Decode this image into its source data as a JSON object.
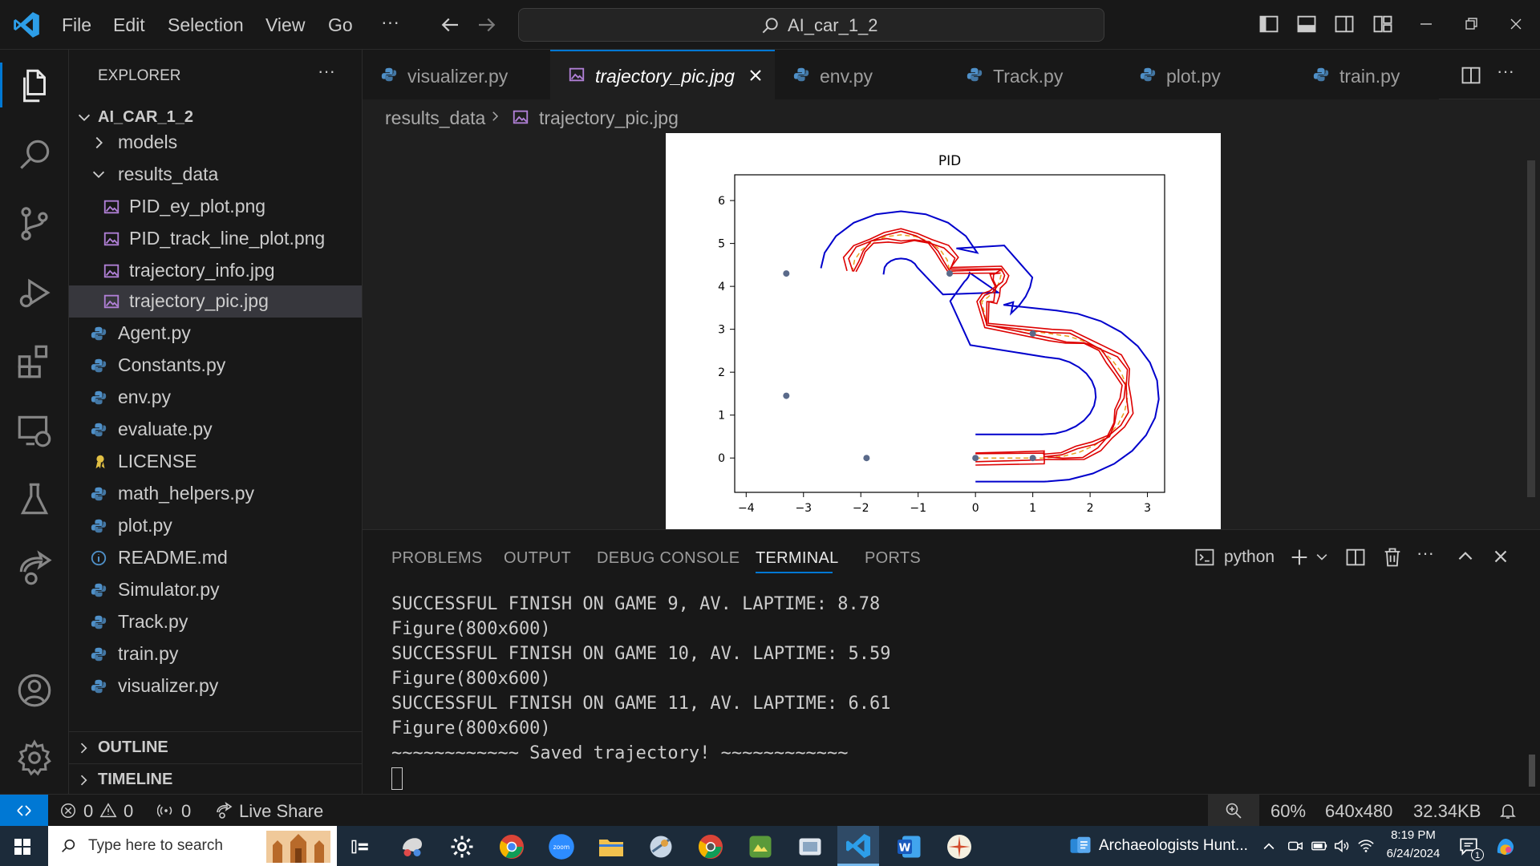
{
  "titlebar": {
    "menu": [
      "File",
      "Edit",
      "Selection",
      "View",
      "Go"
    ],
    "more": "···",
    "search": "AI_car_1_2"
  },
  "sidebar": {
    "title": "EXPLORER",
    "more": "···",
    "root": "AI_CAR_1_2",
    "items": [
      {
        "label": "models",
        "type": "folder"
      },
      {
        "label": "results_data",
        "type": "folder-open"
      },
      {
        "label": "PID_ey_plot.png",
        "type": "image"
      },
      {
        "label": "PID_track_line_plot.png",
        "type": "image"
      },
      {
        "label": "trajectory_info.jpg",
        "type": "image"
      },
      {
        "label": "trajectory_pic.jpg",
        "type": "image"
      },
      {
        "label": "Agent.py",
        "type": "python"
      },
      {
        "label": "Constants.py",
        "type": "python"
      },
      {
        "label": "env.py",
        "type": "python"
      },
      {
        "label": "evaluate.py",
        "type": "python"
      },
      {
        "label": "LICENSE",
        "type": "license"
      },
      {
        "label": "math_helpers.py",
        "type": "python"
      },
      {
        "label": "plot.py",
        "type": "python"
      },
      {
        "label": "README.md",
        "type": "info"
      },
      {
        "label": "Simulator.py",
        "type": "python"
      },
      {
        "label": "Track.py",
        "type": "python"
      },
      {
        "label": "train.py",
        "type": "python"
      },
      {
        "label": "visualizer.py",
        "type": "python"
      }
    ],
    "outline": "OUTLINE",
    "timeline": "TIMELINE"
  },
  "tabs": [
    {
      "label": "visualizer.py",
      "icon": "python-icon"
    },
    {
      "label": "trajectory_pic.jpg",
      "icon": "image-icon"
    },
    {
      "label": "env.py",
      "icon": "python-icon"
    },
    {
      "label": "Track.py",
      "icon": "python-icon"
    },
    {
      "label": "plot.py",
      "icon": "python-icon"
    },
    {
      "label": "train.py",
      "icon": "python-icon"
    }
  ],
  "breadcrumb": {
    "folder": "results_data",
    "file": "trajectory_pic.jpg"
  },
  "chart_data": {
    "type": "line",
    "title": "PID",
    "xlabel": "",
    "ylabel": "",
    "xlim": [
      -4.2,
      3.3
    ],
    "ylim": [
      -0.8,
      6.6
    ],
    "xticks": [
      "−4",
      "−3",
      "−2",
      "−1",
      "0",
      "1",
      "2",
      "3"
    ],
    "yticks": [
      "0",
      "1",
      "2",
      "3",
      "4",
      "5",
      "6"
    ],
    "grid": false,
    "series": [
      {
        "role": "track-boundary",
        "color": "#0000cc"
      },
      {
        "role": "trajectory",
        "color": "#dd0000"
      },
      {
        "role": "reference-line",
        "color": "#e8a020"
      }
    ],
    "waypoints": [
      {
        "x": -3.3,
        "y": 4.3
      },
      {
        "x": -0.45,
        "y": 4.3
      },
      {
        "x": 1.0,
        "y": 2.9
      },
      {
        "x": -3.3,
        "y": 1.45
      },
      {
        "x": -1.9,
        "y": 0.0
      },
      {
        "x": 0.0,
        "y": 0.0
      },
      {
        "x": 1.0,
        "y": 0.0
      }
    ]
  },
  "panel": {
    "tabs": [
      "PROBLEMS",
      "OUTPUT",
      "DEBUG CONSOLE",
      "TERMINAL",
      "PORTS"
    ],
    "shell": "python",
    "lines": [
      "SUCCESSFUL FINISH ON GAME 9, AV. LAPTIME: 8.78",
      "Figure(800x600)",
      "SUCCESSFUL FINISH ON GAME 10, AV. LAPTIME: 5.59",
      "Figure(800x600)",
      "SUCCESSFUL FINISH ON GAME 11, AV. LAPTIME: 6.61",
      "Figure(800x600)",
      "~~~~~~~~~~~~ Saved trajectory! ~~~~~~~~~~~~"
    ]
  },
  "statusbar": {
    "errors": "0",
    "warnings": "0",
    "ports": "0",
    "live_share": "Live Share",
    "zoom": "60%",
    "dimensions": "640x480",
    "size": "32.34KB"
  },
  "taskbar": {
    "search_placeholder": "Type here to search",
    "news": "Archaeologists Hunt...",
    "time": "8:19 PM",
    "date": "6/24/2024",
    "notification_count": "1"
  }
}
